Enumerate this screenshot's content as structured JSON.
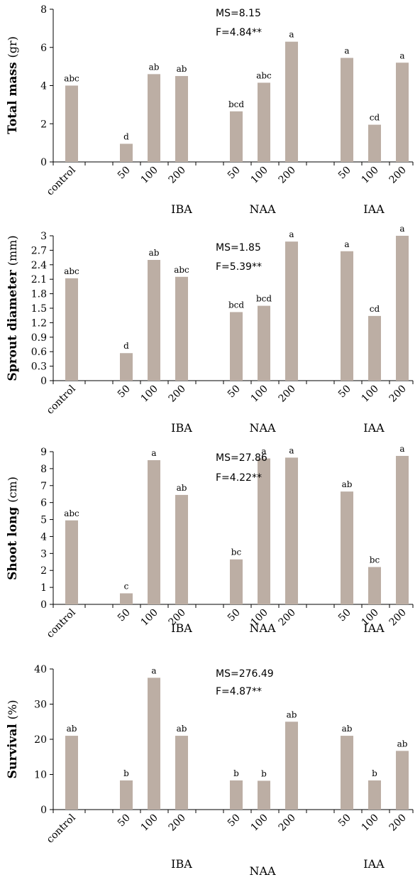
{
  "colors": {
    "bar": "#bcaea4",
    "axis": "#000000"
  },
  "categories": [
    "control",
    "50",
    "100",
    "200",
    "50",
    "100",
    "200",
    "50",
    "100",
    "200"
  ],
  "groups": [
    "IBA",
    "NAA",
    "IAA"
  ],
  "chart_data": [
    {
      "type": "bar",
      "ylabel_bold": "Total mass",
      "ylabel_unit": "(gr)",
      "ylim": [
        0,
        8
      ],
      "yticks": [
        0,
        2,
        4,
        6,
        8
      ],
      "values": [
        4.0,
        0.95,
        4.6,
        4.5,
        2.65,
        4.15,
        6.3,
        5.45,
        1.95,
        5.2
      ],
      "letters": [
        "abc",
        "d",
        "ab",
        "ab",
        "bcd",
        "abc",
        "a",
        "a",
        "cd",
        "a"
      ],
      "ms": "MS=8.15",
      "f": "F=4.84**"
    },
    {
      "type": "bar",
      "ylabel_bold": "Sprout diameter",
      "ylabel_unit": "(mm)",
      "ylim": [
        0,
        3
      ],
      "yticks": [
        0,
        0.3,
        0.6,
        0.9,
        1.2,
        1.5,
        1.8,
        2.1,
        2.4,
        2.7,
        3
      ],
      "values": [
        2.12,
        0.57,
        2.5,
        2.15,
        1.42,
        1.55,
        2.88,
        2.68,
        1.34,
        3.0
      ],
      "letters": [
        "abc",
        "d",
        "ab",
        "abc",
        "bcd",
        "bcd",
        "a",
        "a",
        "cd",
        "a"
      ],
      "ms": "MS=1.85",
      "f": "F=5.39**"
    },
    {
      "type": "bar",
      "ylabel_bold": "Shoot long",
      "ylabel_unit": "(cm)",
      "ylim": [
        0,
        9
      ],
      "yticks": [
        0,
        1,
        2,
        3,
        4,
        5,
        6,
        7,
        8,
        9
      ],
      "values": [
        4.95,
        0.65,
        8.5,
        6.45,
        2.65,
        8.6,
        8.65,
        6.65,
        2.2,
        8.75
      ],
      "letters": [
        "abc",
        "c",
        "a",
        "ab",
        "bc",
        "a",
        "a",
        "ab",
        "bc",
        "a"
      ],
      "ms": "MS=27.86",
      "f": "F=4.22**"
    },
    {
      "type": "bar",
      "ylabel_bold": "Survival",
      "ylabel_unit": "(%)",
      "ylim": [
        0,
        40
      ],
      "yticks": [
        0,
        10,
        20,
        30,
        40
      ],
      "values": [
        21,
        8.3,
        37.5,
        21,
        8.3,
        8.2,
        25,
        21,
        8.3,
        16.7
      ],
      "letters": [
        "ab",
        "b",
        "a",
        "ab",
        "b",
        "b",
        "ab",
        "ab",
        "b",
        "ab"
      ],
      "ms": "MS=276.49",
      "f": "F=4.87**"
    }
  ]
}
